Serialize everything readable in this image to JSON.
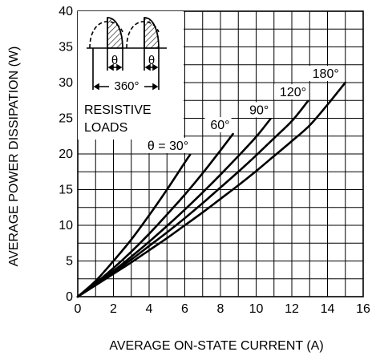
{
  "chart_data": {
    "type": "line",
    "title": "",
    "xlabel": "AVERAGE ON-STATE CURRENT  (A)",
    "ylabel": "AVERAGE POWER DISSIPATION  (W)",
    "xlim": [
      0,
      16
    ],
    "ylim": [
      0,
      40
    ],
    "x_ticks": [
      0,
      2,
      4,
      6,
      8,
      10,
      12,
      14,
      16
    ],
    "y_ticks": [
      0,
      5,
      10,
      15,
      20,
      25,
      30,
      35,
      40
    ],
    "grid": true,
    "series": [
      {
        "name": "θ = 30°",
        "x": [
          0,
          1,
          2,
          3,
          4,
          5,
          6,
          6.3
        ],
        "y": [
          0,
          2.2,
          5.0,
          8.0,
          11.4,
          15.0,
          18.8,
          19.9
        ]
      },
      {
        "name": "60°",
        "x": [
          0,
          1,
          2,
          3,
          4,
          5,
          6,
          7,
          8,
          8.7
        ],
        "y": [
          0,
          1.9,
          4.0,
          6.3,
          8.8,
          11.5,
          14.3,
          17.3,
          20.5,
          22.8
        ]
      },
      {
        "name": "90°",
        "x": [
          0,
          1,
          2,
          3,
          4,
          5,
          6,
          7,
          8,
          9,
          10,
          10.8
        ],
        "y": [
          0,
          1.8,
          3.6,
          5.6,
          7.7,
          9.9,
          12.2,
          14.6,
          17.1,
          19.7,
          22.4,
          24.9
        ]
      },
      {
        "name": "120°",
        "x": [
          0,
          1,
          2,
          3,
          4,
          5,
          6,
          7,
          8,
          9,
          10,
          11,
          12,
          12.9
        ],
        "y": [
          0,
          1.7,
          3.4,
          5.2,
          7.1,
          9.0,
          11.0,
          13.1,
          15.3,
          17.5,
          19.8,
          22.2,
          24.6,
          27.4
        ]
      },
      {
        "name": "180°",
        "x": [
          0,
          1,
          2,
          3,
          4,
          5,
          6,
          7,
          8,
          9,
          10,
          11,
          12,
          13,
          14,
          15
        ],
        "y": [
          0,
          1.6,
          3.2,
          4.8,
          6.5,
          8.2,
          10.0,
          11.8,
          13.7,
          15.6,
          17.6,
          19.7,
          21.8,
          24.0,
          26.9,
          30.0
        ]
      }
    ],
    "inset": {
      "theta_label_1": "θ",
      "theta_label_2": "θ",
      "period_label": "360°",
      "load_label_line1": "RESISTIVE",
      "load_label_line2": "LOADS"
    }
  }
}
